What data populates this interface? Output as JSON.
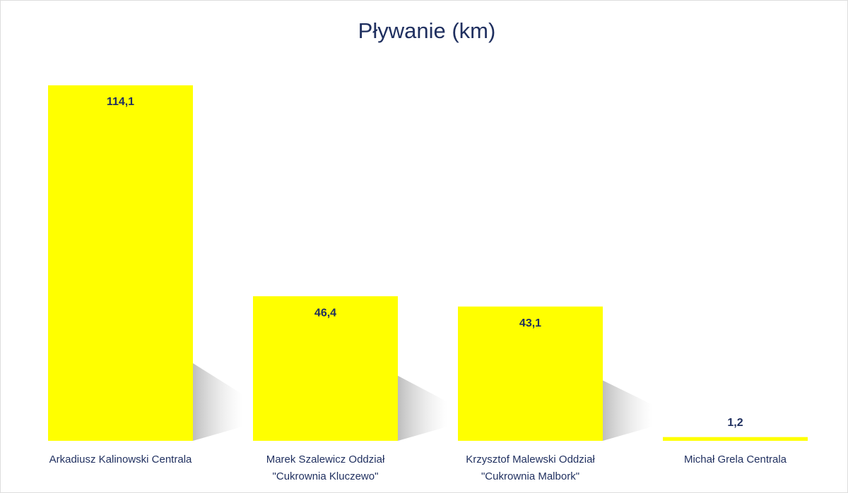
{
  "chart_data": {
    "type": "bar",
    "title": "Pływanie (km)",
    "categories": [
      "Arkadiusz Kalinowski Centrala",
      "Marek Szalewicz Oddział\n\"Cukrownia Kluczewo\"",
      "Krzysztof Malewski Oddział\n\"Cukrownia Malbork\"",
      "Michał Grela Centrala"
    ],
    "values": [
      114.1,
      46.4,
      43.1,
      1.2
    ],
    "value_labels": [
      "114,1",
      "46,4",
      "43,1",
      "1,2"
    ],
    "color": "#ffff00"
  }
}
